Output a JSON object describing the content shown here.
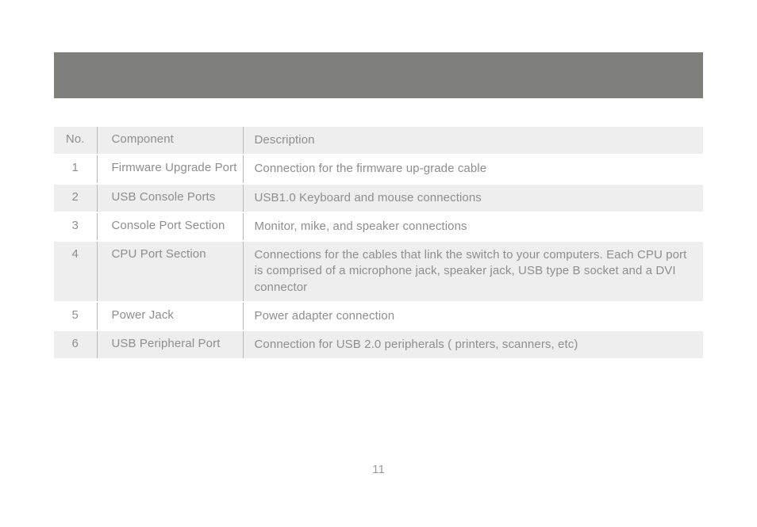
{
  "page_number": "11",
  "banner_color": "#7f807b",
  "text_color": "#8e8e8e",
  "row_even_bg": "#eeeeee",
  "row_odd_bg": "#ffffff",
  "divider_color": "#b8b8b8",
  "font_size_pt": 11,
  "table": {
    "columns": [
      "No.",
      "Component",
      "Description"
    ],
    "rows": [
      {
        "no": "1",
        "component": "Firmware Upgrade Port",
        "description": "Connection for the firmware up-grade cable"
      },
      {
        "no": "2",
        "component": "USB Console Ports",
        "description": "USB1.0 Keyboard and mouse connections"
      },
      {
        "no": "3",
        "component": "Console Port Section",
        "description": "Monitor, mike, and speaker connections"
      },
      {
        "no": "4",
        "component": "CPU Port Section",
        "description": "Connections for the cables that link the switch to your computers. Each CPU port is comprised of a microphone jack, speaker jack, USB type B socket and a DVI connector"
      },
      {
        "no": "5",
        "component": "Power Jack",
        "description": "Power adapter connection"
      },
      {
        "no": "6",
        "component": "USB Peripheral Port",
        "description": "Connection for USB 2.0 peripherals ( printers, scanners, etc)"
      }
    ]
  }
}
